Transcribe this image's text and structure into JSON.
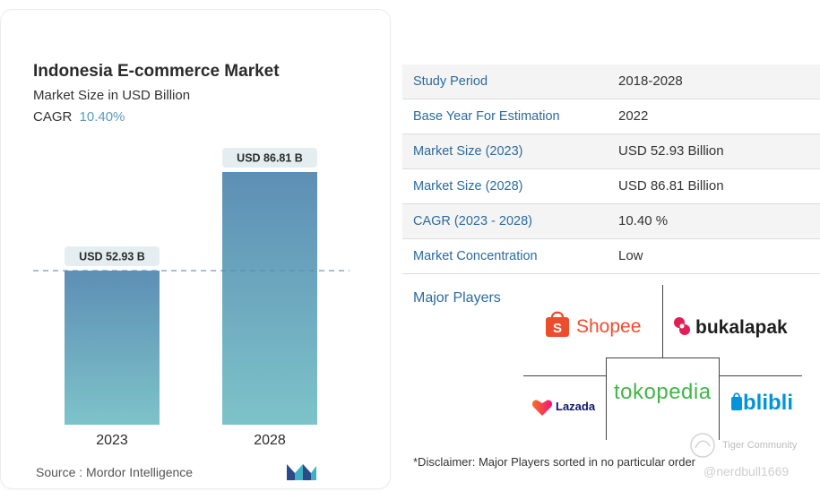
{
  "chart_data": {
    "type": "bar",
    "title": "Indonesia E-commerce Market",
    "subtitle": "Market Size in USD Billion",
    "cagr_label": "CAGR",
    "cagr_value": "10.40%",
    "categories": [
      "2023",
      "2028"
    ],
    "values": [
      52.93,
      86.81
    ],
    "data_labels": [
      "USD 52.93 B",
      "USD 86.81 B"
    ],
    "ylim": [
      0,
      90
    ],
    "grid": false,
    "colors": {
      "bar_top": "#5d8fb5",
      "bar_bottom": "#7ec3c9",
      "label_bg": "#e4eef0",
      "dash": "#5b8fb7"
    }
  },
  "source": "Source :  Mordor Intelligence",
  "logo_icon": "mordor-intelligence-logo-icon",
  "table": [
    {
      "key": "Study Period",
      "value": "2018-2028"
    },
    {
      "key": "Base Year For Estimation",
      "value": "2022"
    },
    {
      "key": "Market Size (2023)",
      "value": "USD 52.93 Billion"
    },
    {
      "key": "Market Size (2028)",
      "value": "USD 86.81 Billion"
    },
    {
      "key": "CAGR (2023 - 2028)",
      "value": "10.40 %"
    },
    {
      "key": "Market Concentration",
      "value": "Low"
    }
  ],
  "major_players": {
    "title": "Major Players",
    "players": [
      "Shopee",
      "bukalapak",
      "tokopedia",
      "Lazada",
      "blibli"
    ]
  },
  "disclaimer": "*Disclaimer: Major Players sorted in no particular order",
  "watermark": {
    "line1": "Tiger Community",
    "line2": "@nerdbull1669"
  }
}
